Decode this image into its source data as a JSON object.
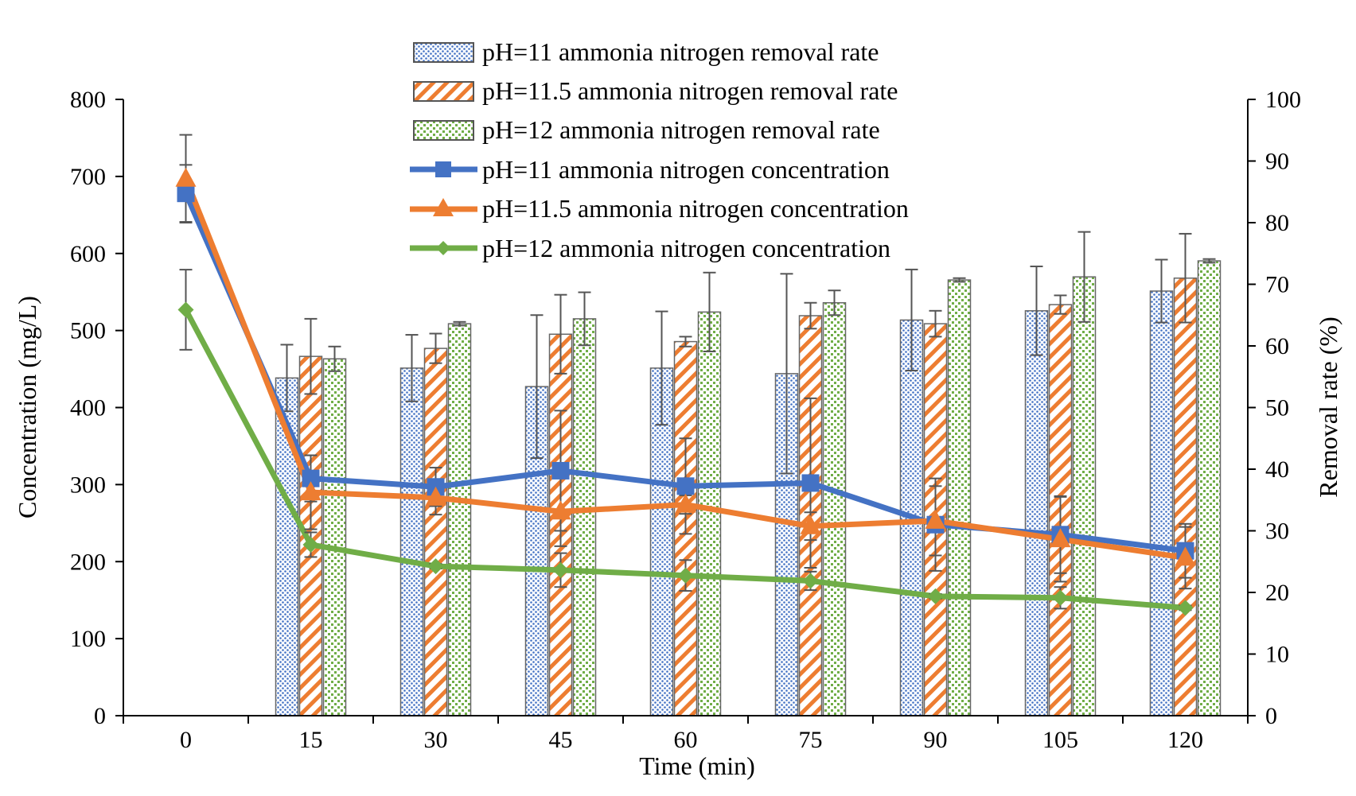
{
  "chart_data": {
    "type": "bar+line",
    "title": "",
    "xlabel": "Time (min)",
    "ylabel": "Concentration (mg/L)",
    "y2label": "Removal rate (%)",
    "ylim": [
      0,
      800
    ],
    "y2lim": [
      0,
      100
    ],
    "yticks": [
      "0",
      "100",
      "200",
      "300",
      "400",
      "500",
      "600",
      "700",
      "800"
    ],
    "y2ticks": [
      "0",
      "10",
      "20",
      "30",
      "40",
      "50",
      "60",
      "70",
      "80",
      "90",
      "100"
    ],
    "categories": [
      "0",
      "15",
      "30",
      "45",
      "60",
      "75",
      "90",
      "105",
      "120"
    ],
    "legend_position": "top-center",
    "bar_series": [
      {
        "name": "pH=11 ammonia nitrogen removal rate",
        "axis": "right",
        "pattern": "dots-blue",
        "color": "#4472C4",
        "values": [
          null,
          54.8,
          56.4,
          53.4,
          56.4,
          55.5,
          64.2,
          65.7,
          68.9
        ],
        "errors": [
          null,
          5.4,
          5.4,
          11.6,
          9.2,
          16.2,
          8.2,
          7.2,
          5.1
        ]
      },
      {
        "name": "pH=11.5 ammonia nitrogen removal rate",
        "axis": "right",
        "pattern": "hatch-orange",
        "color": "#ED7D31",
        "values": [
          null,
          58.3,
          59.6,
          61.9,
          60.7,
          64.9,
          63.6,
          66.7,
          71.0
        ],
        "errors": [
          null,
          6.1,
          2.4,
          6.4,
          0.8,
          2.1,
          2.1,
          1.5,
          7.2
        ]
      },
      {
        "name": "pH=12 ammonia nitrogen removal rate",
        "axis": "right",
        "pattern": "dots-green",
        "color": "#70AD47",
        "values": [
          null,
          57.9,
          63.6,
          64.4,
          65.5,
          67.0,
          70.7,
          71.2,
          73.8
        ],
        "errors": [
          null,
          2.0,
          0.3,
          4.3,
          6.4,
          2.0,
          0.3,
          7.3,
          0.3
        ]
      }
    ],
    "line_series": [
      {
        "name": "pH=11 ammonia nitrogen concentration",
        "axis": "left",
        "marker": "square",
        "color": "#4472C4",
        "values": [
          678,
          308,
          297,
          318,
          298,
          302,
          248,
          235,
          214
        ],
        "errors": [
          37,
          30,
          25,
          78,
          62,
          110,
          60,
          50,
          35
        ]
      },
      {
        "name": "pH=11.5 ammonia nitrogen concentration",
        "axis": "left",
        "marker": "triangle",
        "color": "#ED7D31",
        "values": [
          697,
          290,
          283,
          265,
          274,
          246,
          253,
          229,
          205
        ],
        "errors": [
          57,
          48,
          22,
          45,
          12,
          18,
          45,
          55,
          40
        ]
      },
      {
        "name": "pH=12 ammonia nitrogen concentration",
        "axis": "left",
        "marker": "diamond",
        "color": "#70AD47",
        "values": [
          527,
          222,
          194,
          189,
          182,
          175,
          155,
          153,
          140
        ],
        "errors": [
          52,
          16,
          3,
          22,
          20,
          12,
          3,
          14,
          3
        ]
      }
    ]
  }
}
